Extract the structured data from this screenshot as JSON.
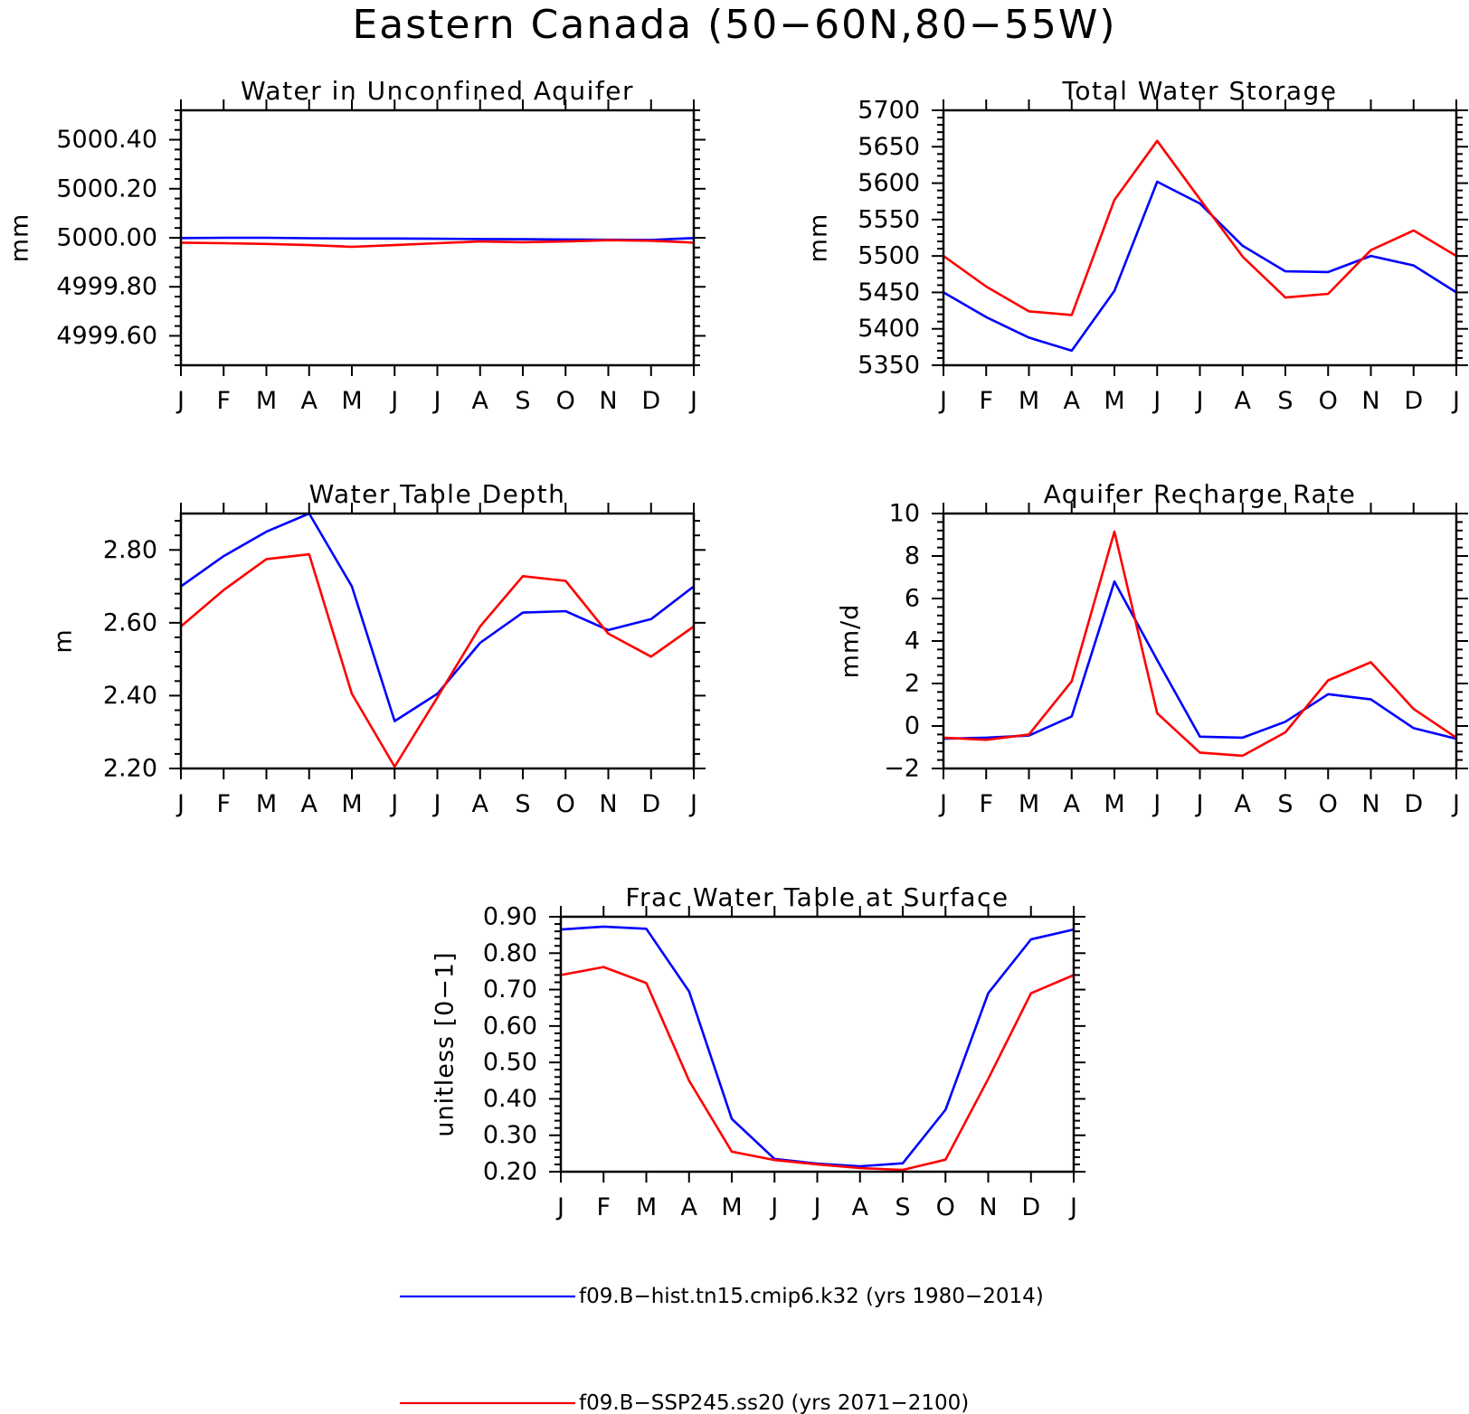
{
  "figure": {
    "title": "Eastern Canada (50−60N,80−55W)",
    "colors": {
      "hist": "#0000ff",
      "ssp": "#ff0000",
      "axis": "#000000"
    }
  },
  "legend": [
    {
      "series": "hist",
      "label": "f09.B−hist.tn15.cmip6.k32 (yrs 1980−2014)"
    },
    {
      "series": "ssp",
      "label": "f09.B−SSP245.ss20 (yrs 2071−2100)"
    }
  ],
  "chart_data": [
    {
      "type": "line",
      "title": "Water in Unconfined Aquifer",
      "ylabel": "mm",
      "categories": [
        "J",
        "F",
        "M",
        "A",
        "M",
        "J",
        "J",
        "A",
        "S",
        "O",
        "N",
        "D",
        "J"
      ],
      "ylim": [
        4999.48,
        5000.52
      ],
      "yticks": [
        4999.6,
        4999.8,
        5000.0,
        5000.2,
        5000.4
      ],
      "ytick_labels": [
        "4999.60",
        "4999.80",
        "5000.00",
        "5000.20",
        "5000.40"
      ],
      "series": [
        {
          "key": "hist",
          "values": [
            4999.999,
            5000.0,
            5000.0,
            4999.998,
            4999.997,
            4999.997,
            4999.996,
            4999.995,
            4999.994,
            4999.993,
            4999.992,
            4999.991,
            4999.999
          ]
        },
        {
          "key": "ssp",
          "values": [
            4999.98,
            4999.978,
            4999.975,
            4999.97,
            4999.963,
            4999.97,
            4999.978,
            4999.985,
            4999.982,
            4999.985,
            4999.99,
            4999.988,
            4999.98
          ]
        }
      ]
    },
    {
      "type": "line",
      "title": "Total Water Storage",
      "ylabel": "mm",
      "categories": [
        "J",
        "F",
        "M",
        "A",
        "M",
        "J",
        "J",
        "A",
        "S",
        "O",
        "N",
        "D",
        "J"
      ],
      "ylim": [
        5350,
        5700
      ],
      "yticks": [
        5350,
        5400,
        5450,
        5500,
        5550,
        5600,
        5650,
        5700
      ],
      "ytick_labels": [
        "5350",
        "5400",
        "5450",
        "5500",
        "5550",
        "5600",
        "5650",
        "5700"
      ],
      "series": [
        {
          "key": "hist",
          "values": [
            5450,
            5416,
            5388,
            5370,
            5452,
            5602,
            5572,
            5514,
            5479,
            5478,
            5500,
            5487,
            5450
          ]
        },
        {
          "key": "ssp",
          "values": [
            5500,
            5458,
            5424,
            5419,
            5577,
            5658,
            5578,
            5499,
            5443,
            5448,
            5508,
            5535,
            5500
          ]
        }
      ]
    },
    {
      "type": "line",
      "title": "Water Table Depth",
      "ylabel": "m",
      "categories": [
        "J",
        "F",
        "M",
        "A",
        "M",
        "J",
        "J",
        "A",
        "S",
        "O",
        "N",
        "D",
        "J"
      ],
      "ylim": [
        2.2,
        2.9
      ],
      "yticks": [
        2.2,
        2.4,
        2.6,
        2.8
      ],
      "ytick_labels": [
        "2.20",
        "2.40",
        "2.60",
        "2.80"
      ],
      "series": [
        {
          "key": "hist",
          "values": [
            2.7,
            2.783,
            2.85,
            2.9,
            2.7,
            2.33,
            2.405,
            2.545,
            2.628,
            2.632,
            2.58,
            2.61,
            2.7
          ]
        },
        {
          "key": "ssp",
          "values": [
            2.59,
            2.69,
            2.775,
            2.788,
            2.405,
            2.205,
            2.395,
            2.59,
            2.728,
            2.715,
            2.57,
            2.507,
            2.59
          ]
        }
      ]
    },
    {
      "type": "line",
      "title": "Aquifer Recharge Rate",
      "ylabel": "mm/d",
      "categories": [
        "J",
        "F",
        "M",
        "A",
        "M",
        "J",
        "J",
        "A",
        "S",
        "O",
        "N",
        "D",
        "J"
      ],
      "ylim": [
        -2,
        10
      ],
      "yticks": [
        -2,
        0,
        2,
        4,
        6,
        8,
        10
      ],
      "ytick_labels": [
        "−2",
        "0",
        "2",
        "4",
        "6",
        "8",
        "10"
      ],
      "series": [
        {
          "key": "hist",
          "values": [
            -0.6,
            -0.55,
            -0.45,
            0.45,
            6.8,
            3.1,
            -0.5,
            -0.55,
            0.2,
            1.5,
            1.25,
            -0.1,
            -0.6
          ]
        },
        {
          "key": "ssp",
          "values": [
            -0.55,
            -0.65,
            -0.4,
            2.1,
            9.15,
            0.6,
            -1.25,
            -1.4,
            -0.3,
            2.15,
            3.0,
            0.8,
            -0.55
          ]
        }
      ]
    },
    {
      "type": "line",
      "title": "Frac Water Table at Surface",
      "ylabel": "unitless [0−1]",
      "categories": [
        "J",
        "F",
        "M",
        "A",
        "M",
        "J",
        "J",
        "A",
        "S",
        "O",
        "N",
        "D",
        "J"
      ],
      "ylim": [
        0.2,
        0.9
      ],
      "yticks": [
        0.2,
        0.3,
        0.4,
        0.5,
        0.6,
        0.7,
        0.8,
        0.9
      ],
      "ytick_labels": [
        "0.20",
        "0.30",
        "0.40",
        "0.50",
        "0.60",
        "0.70",
        "0.80",
        "0.90"
      ],
      "series": [
        {
          "key": "hist",
          "values": [
            0.865,
            0.873,
            0.867,
            0.695,
            0.345,
            0.235,
            0.222,
            0.215,
            0.223,
            0.37,
            0.69,
            0.838,
            0.865
          ]
        },
        {
          "key": "ssp",
          "values": [
            0.74,
            0.762,
            0.718,
            0.45,
            0.255,
            0.232,
            0.22,
            0.21,
            0.205,
            0.233,
            0.455,
            0.69,
            0.74
          ]
        }
      ]
    }
  ]
}
